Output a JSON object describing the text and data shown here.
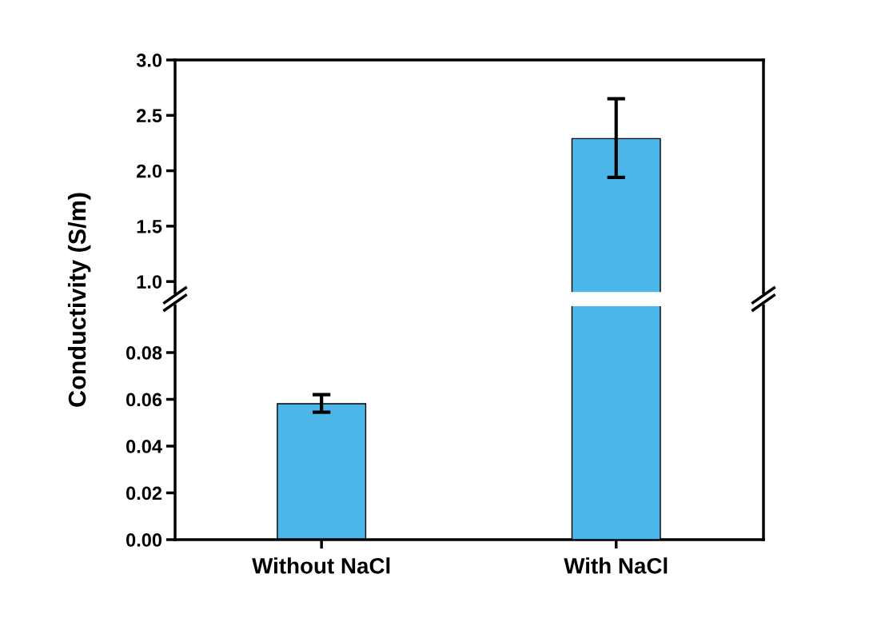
{
  "chart_data": [
    {
      "type": "bar",
      "ylabel": "Conductivity (S/m)",
      "values": [
        null,
        2.29
      ],
      "color": "#4db6e8",
      "errors": [
        null,
        [
          1.94,
          2.65
        ]
      ],
      "ylim": [
        0.9,
        3.0
      ],
      "yticks": [
        {
          "value": 1.0,
          "label": "1.0"
        },
        {
          "value": 1.5,
          "label": "1.5"
        },
        {
          "value": 2.0,
          "label": "2.0"
        },
        {
          "value": 2.5,
          "label": "2.5"
        },
        {
          "value": 3.0,
          "label": "3.0"
        }
      ],
      "grid": false,
      "legend": false
    },
    {
      "type": "bar",
      "categories": [
        "Without NaCl",
        "With NaCl"
      ],
      "values": [
        0.0581,
        null
      ],
      "color": "#4db6e8",
      "errors": [
        [
          0.0545,
          0.062
        ],
        null
      ],
      "ylim": [
        0,
        0.1
      ],
      "yticks": [
        {
          "value": 0,
          "label": "0.00"
        },
        {
          "value": 0.02,
          "label": "0.02"
        },
        {
          "value": 0.04,
          "label": "0.04"
        },
        {
          "value": 0.06,
          "label": "0.06"
        },
        {
          "value": 0.08,
          "label": "0.08"
        }
      ],
      "grid": false,
      "legend": false
    }
  ]
}
